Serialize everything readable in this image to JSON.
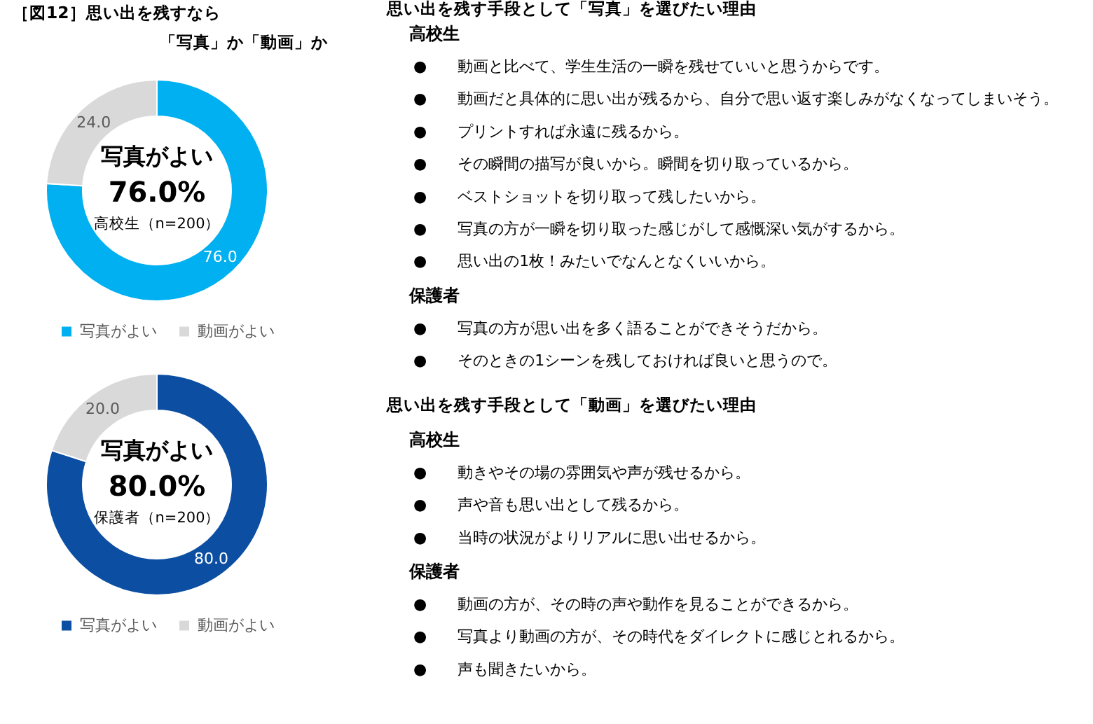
{
  "chart_data": [
    {
      "type": "donut",
      "title": "［図12］思い出を残すなら",
      "subtitle": "「写真」か「動画」か",
      "categories": [
        "写真がよい",
        "動画がよい"
      ],
      "values": [
        76.0,
        24.0
      ],
      "colors": [
        "#00b0f0",
        "#d9d9d9"
      ],
      "value_labels": [
        "76.0",
        "24.0"
      ],
      "legend": "bottom",
      "annotations": [
        "写真がよい",
        "76.0%",
        "高校生（n=200）"
      ]
    },
    {
      "type": "donut",
      "categories": [
        "写真がよい",
        "動画がよい"
      ],
      "values": [
        80.0,
        20.0
      ],
      "colors": [
        "#0b4ea2",
        "#d9d9d9"
      ],
      "value_labels": [
        "80.0",
        "20.0"
      ],
      "legend": "bottom",
      "annotations": [
        "写真がよい",
        "80.0%",
        "保護者（n=200）"
      ]
    },
    {
      "type": "other",
      "title": "思い出を残す手段として「写真」を選びたい理由",
      "subtitle": "高校生",
      "annotations": [
        "●　　動画と比べて、学生生活の一瞬を残せていいと思うからです。",
        "●　　動画だと具体的に思い出が残るから、自分で思い返す楽しみがなくなってしまいそう。",
        "●　　プリントすれば永遠に残るから。",
        "●　　その瞬間の描写が良いから。瞬間を切り取っているから。",
        "●　　ベストショットを切り取って残したいから。",
        "●　　写真の方が一瞬を切り取った感じがして感慨深い気がするから。",
        "●　　思い出の1枚！みたいでなんとなくいいから。"
      ]
    },
    {
      "type": "other",
      "subtitle": "保護者",
      "annotations": [
        "●　　写真の方が思い出を多く語ることができそうだから。",
        "●　　そのときの1シーンを残しておければ良いと思うので。"
      ]
    },
    {
      "type": "other",
      "title": "思い出を残す手段として「動画」を選びたい理由",
      "subtitle": "高校生",
      "annotations": [
        "●　　動きやその場の雰囲気や声が残せるから。",
        "●　　声や音も思い出として残るから。",
        "●　　当時の状況がよりリアルに思い出せるから。"
      ]
    },
    {
      "type": "other",
      "subtitle": "保護者",
      "annotations": [
        "●　　動画の方が、その時の声や動作を見ることができるから。",
        "●　　写真より動画の方が、その時代をダイレクトに感じとれるから。",
        "●　　声も聞きたいから。"
      ]
    }
  ]
}
